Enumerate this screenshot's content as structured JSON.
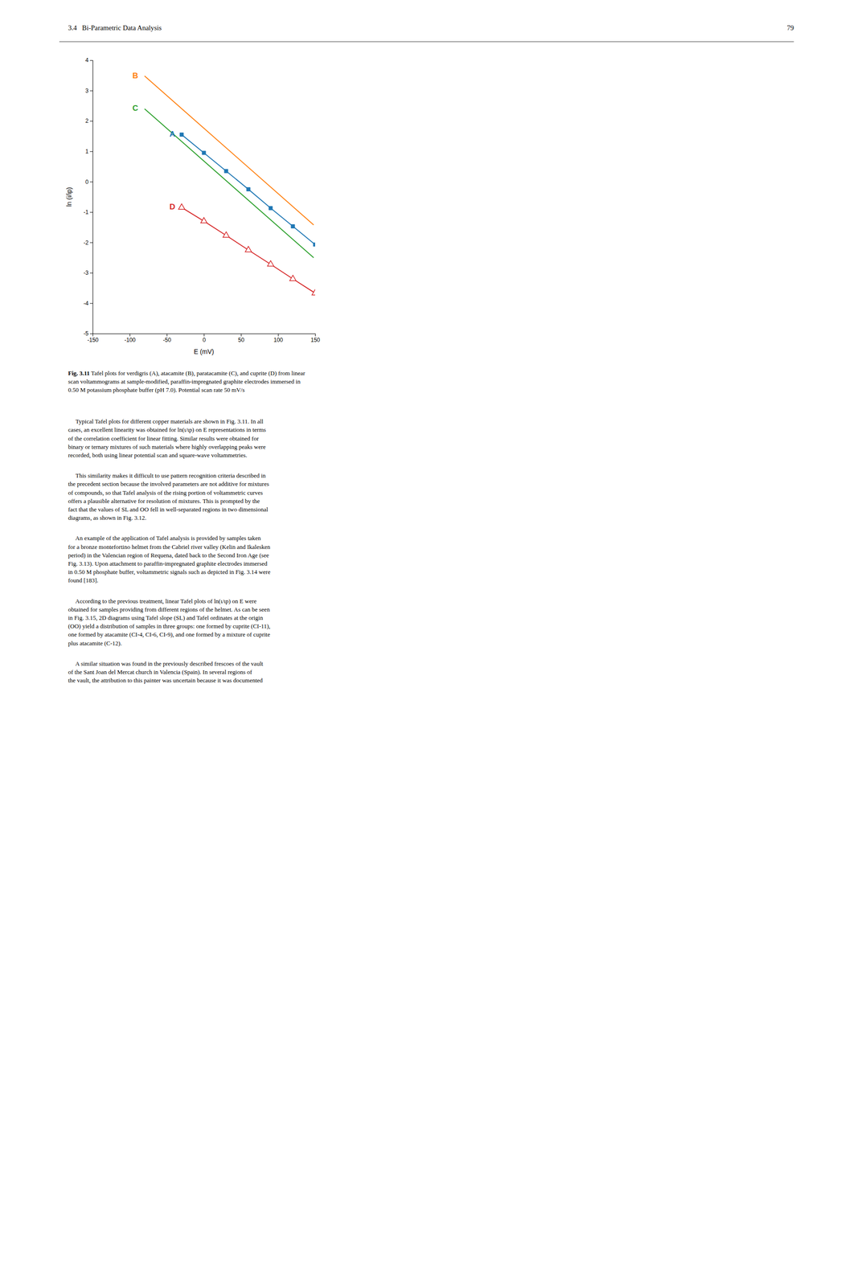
{
  "chart_data": {
    "type": "line",
    "xlabel": "E (mV)",
    "ylabel": "ln (i/ip)",
    "xlim": [
      -150,
      150
    ],
    "ylim": [
      -5,
      4
    ],
    "xticks": [
      -150,
      -100,
      -50,
      0,
      50,
      100,
      150
    ],
    "yticks": [
      -5,
      -4,
      -3,
      -2,
      -1,
      0,
      1,
      2,
      3,
      4
    ],
    "grid": false,
    "series": [
      {
        "name": "A",
        "x": [
          -30,
          0,
          30,
          60,
          90,
          120,
          150
        ],
        "values": [
          1.55,
          0.95,
          0.35,
          -0.25,
          -0.87,
          -1.47,
          -2.07
        ],
        "marker": "square"
      },
      {
        "name": "B",
        "x": [
          -80,
          148
        ],
        "values": [
          3.48,
          -1.422
        ],
        "marker": "none"
      },
      {
        "name": "C",
        "x": [
          -80,
          148
        ],
        "values": [
          2.4,
          -2.502
        ],
        "marker": "none"
      },
      {
        "name": "D",
        "x": [
          -30,
          0,
          30,
          60,
          90,
          120,
          150
        ],
        "values": [
          -0.85,
          -1.3,
          -1.77,
          -2.25,
          -2.72,
          -3.2,
          -3.67
        ],
        "marker": "open-triangle"
      }
    ]
  },
  "page": {
    "header_left": "3.4   Bi-Parametric Data Analysis",
    "header_right": "79",
    "caption_bold": "Fig. 3.11",
    "caption_normal": " Tafel plots for verdigris (A), atacamite (B), paratacamite (C), and cuprite (D) from linear\nscan voltammograms at sample-modified, paraffin-impregnated graphite electrodes immersed in\n0.50 M potassium phosphate buffer (pH 7.0). Potential scan rate 50 mV/s",
    "paragraphs": [
      "     Typical Tafel plots for different copper materials are shown in Fig. 3.11. In all\ncases, an excellent linearity was obtained for ln(ι/ιp) on E representations in terms\nof the correlation coefficient for linear fitting. Similar results were obtained for\nbinary or ternary mixtures of such materials where highly overlapping peaks were\nrecorded, both using linear potential scan and square-wave voltammetries.",
      "     This similarity makes it difficult to use pattern recognition criteria described in\nthe precedent section because the involved parameters are not additive for mixtures\nof compounds, so that Tafel analysis of the rising portion of voltammetric curves\noffers a plausible alternative for resolution of mixtures. This is prompted by the\nfact that the values of SL and OO fell in well-separated regions in two dimensional\ndiagrams, as shown in Fig. 3.12.",
      "     An example of the application of Tafel analysis is provided by samples taken\nfor a bronze montefortino helmet from the Cabriel river valley (Kelin and Ikalesken\nperiod) in the Valencian region of Requena, dated back to the Second Iron Age (see\nFig. 3.13). Upon attachment to paraffin-impregnated graphite electrodes immersed\nin 0.50 M phosphate buffer, voltammetric signals such as depicted in Fig. 3.14 were\nfound [183].",
      "     According to the previous treatment, linear Tafel plots of ln(ι/ιp) on E were\nobtained for samples providing from different regions of the helmet. As can be seen\nin Fig. 3.15, 2D diagrams using Tafel slope (SL) and Tafel ordinates at the origin\n(OO) yield a distribution of samples in three groups: one formed by cuprite (CI-11),\none formed by atacamite (CI-4, CI-6, CI-9), and one formed by a mixture of cuprite\nplus atacamite (C-12).",
      "     A similar situation was found in the previously described frescoes of the vault\nof the Sant Joan del Mercat church in Valencia (Spain). In several regions of\nthe vault, the attribution to this painter was uncertain because it was documented"
    ]
  }
}
